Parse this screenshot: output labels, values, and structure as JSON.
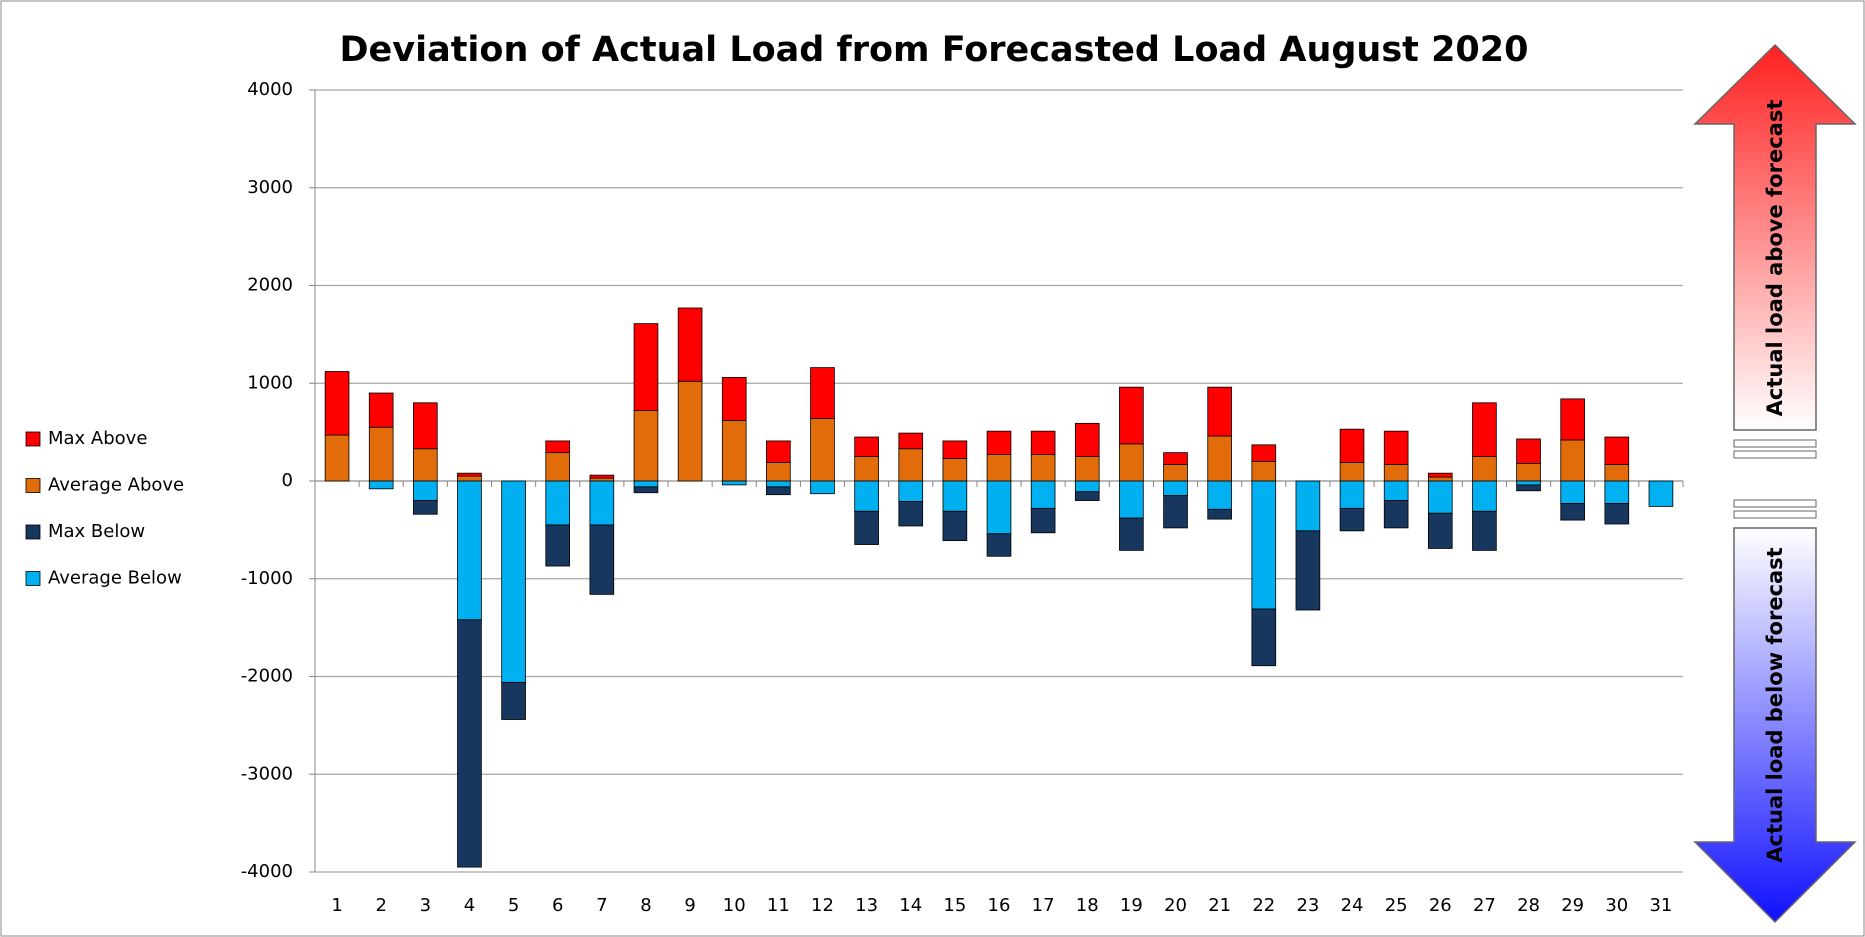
{
  "chart_data": {
    "type": "bar",
    "stacked": true,
    "title": "Deviation of Actual Load from Forecasted Load August 2020",
    "categories": [
      "1",
      "2",
      "3",
      "4",
      "5",
      "6",
      "7",
      "8",
      "9",
      "10",
      "11",
      "12",
      "13",
      "14",
      "15",
      "16",
      "17",
      "18",
      "19",
      "20",
      "21",
      "22",
      "23",
      "24",
      "25",
      "26",
      "27",
      "28",
      "29",
      "30",
      "31"
    ],
    "series": [
      {
        "name": "Max Above",
        "color": "#ff0000",
        "values": [
          650,
          350,
          470,
          30,
          0,
          120,
          30,
          890,
          750,
          440,
          220,
          520,
          200,
          160,
          180,
          240,
          240,
          340,
          580,
          120,
          500,
          170,
          0,
          340,
          340,
          40,
          550,
          250,
          420,
          280,
          0
        ]
      },
      {
        "name": "Average Above",
        "color": "#e36c0a",
        "values": [
          470,
          550,
          330,
          50,
          0,
          290,
          30,
          720,
          1020,
          620,
          190,
          640,
          250,
          330,
          230,
          270,
          270,
          250,
          380,
          170,
          460,
          200,
          0,
          190,
          170,
          40,
          250,
          180,
          420,
          170,
          0
        ]
      },
      {
        "name": "Max Below",
        "color": "#17375e",
        "values": [
          0,
          0,
          -140,
          -2530,
          -380,
          -420,
          -710,
          -60,
          0,
          0,
          -80,
          0,
          -340,
          -250,
          -300,
          -230,
          -250,
          -90,
          -330,
          -330,
          -100,
          -580,
          -810,
          -230,
          -280,
          -360,
          -400,
          -60,
          -170,
          -210,
          0
        ]
      },
      {
        "name": "Average Below",
        "color": "#00b0f0",
        "values": [
          0,
          -80,
          -200,
          -1420,
          -2060,
          -450,
          -450,
          -60,
          0,
          -40,
          -60,
          -130,
          -310,
          -210,
          -310,
          -540,
          -280,
          -110,
          -380,
          -150,
          -290,
          -1310,
          -510,
          -280,
          -200,
          -330,
          -310,
          -40,
          -230,
          -230,
          -260
        ]
      }
    ],
    "ylim": [
      -4000,
      4000
    ],
    "yticks": [
      -4000,
      -3000,
      -2000,
      -1000,
      0,
      1000,
      2000,
      3000,
      4000
    ],
    "grid": true,
    "legend": "left",
    "annotations": [
      "Actual load above forecast",
      "Actual load below forecast"
    ]
  }
}
